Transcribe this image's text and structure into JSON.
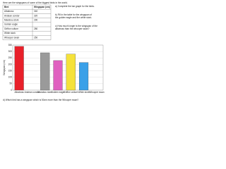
{
  "intro": "Here are the wingspans of some of the biggest birds in the world.",
  "table": {
    "header": [
      "Bird",
      "Wingspan (cm)"
    ],
    "rows": [
      [
        "Albatross",
        340
      ],
      [
        "Andean condor",
        320
      ],
      [
        "Marabou stork",
        290
      ],
      [
        "Golden eagle",
        null
      ],
      [
        "Griffon vulture",
        280
      ],
      [
        "White stork",
        null
      ],
      [
        "Whooper swan",
        250
      ]
    ]
  },
  "questions": [
    "a) Complete the bar graph for the birds.",
    "b) Fill in the table for the wingspan of the golden eagle and the white stork.",
    "c) How much longer is the wingspan of the albatross than the whooper swan?",
    "d) Which bird has a wingspan which is 50cm more than the Whooper swan?"
  ],
  "chart": {
    "type": "bar",
    "ylabel": "Wingspan (cm)",
    "categories": [
      "Albatross",
      "Andean condor",
      "Marabou stork",
      "Golden eagle",
      "Griffon vulture",
      "White stork",
      "Whooper swan"
    ],
    "values": [
      340,
      null,
      290,
      230,
      280,
      215,
      null
    ],
    "colors": [
      "#e8202a",
      "#cccccc",
      "#9a9a9a",
      "#e060c0",
      "#f5e23a",
      "#3aa0e8",
      "#cccccc"
    ],
    "ylim": [
      0,
      350
    ],
    "yticks": [
      0,
      50,
      100,
      150,
      200,
      250,
      300,
      350
    ],
    "grid": true
  }
}
